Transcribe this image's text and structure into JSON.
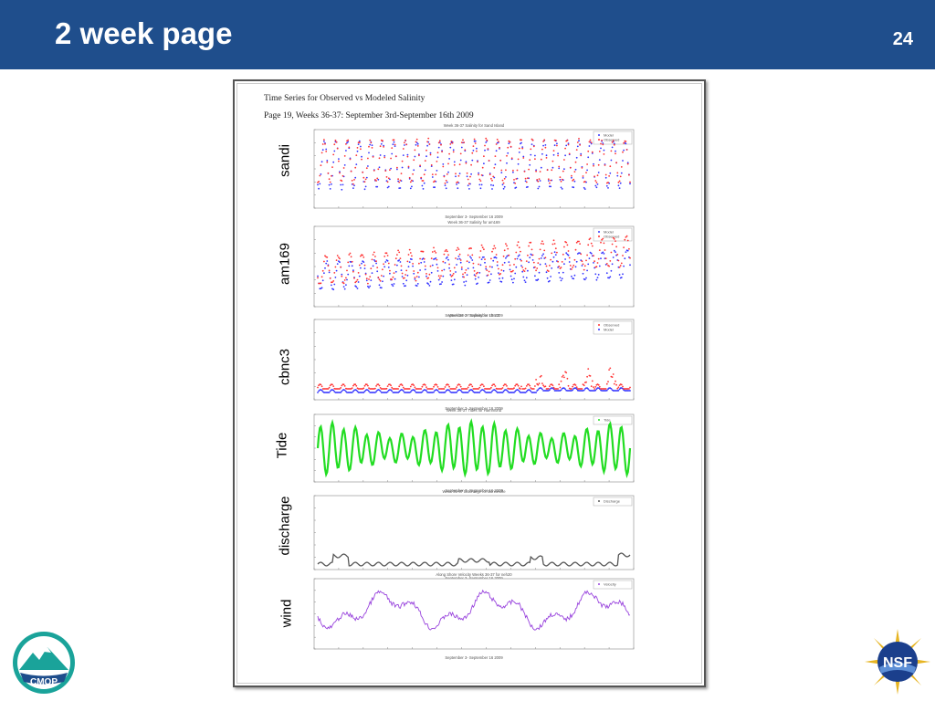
{
  "slide": {
    "title": "2 week page",
    "number": "24"
  },
  "document": {
    "heading": "Time Series for Observed vs Modeled Salinity",
    "subheading": "Page 19, Weeks 36-37: September 3rd-September 16th 2009"
  },
  "panels": [
    {
      "label": "sandi",
      "title": "Week 36-37 Salinity for Sand Island",
      "legend": [
        "Model",
        "Observed"
      ],
      "colors": [
        "#3333ff",
        "#ff3333"
      ]
    },
    {
      "label": "am169",
      "title": "Week 36-37 Salinity for am169",
      "legend": [
        "Model",
        "Observed"
      ],
      "colors": [
        "#3333ff",
        "#ff3333"
      ]
    },
    {
      "label": "cbnc3",
      "title": "Week 36-37 Salinity for cbnc3",
      "legend": [
        "Observed",
        "Model"
      ],
      "colors": [
        "#ff3333",
        "#3333ff"
      ]
    },
    {
      "label": "Tide",
      "title": "Week 36-37 Tides for Hammond",
      "legend": [
        "Tide"
      ],
      "colors": [
        "#22dd22"
      ]
    },
    {
      "label": "discharge",
      "title": "Week 36-37 Discharge for Bonneville",
      "legend": [
        "Discharge"
      ],
      "colors": [
        "#555555"
      ]
    },
    {
      "label": "wind",
      "title": "Along Shore Velocity Weeks 36-37 for neh20",
      "legend": [
        "Velocity"
      ],
      "colors": [
        "#9944dd"
      ]
    }
  ],
  "xlabel": "September 3- September 16 2009",
  "logos": {
    "left": "CMOP",
    "right": "NSF"
  }
}
